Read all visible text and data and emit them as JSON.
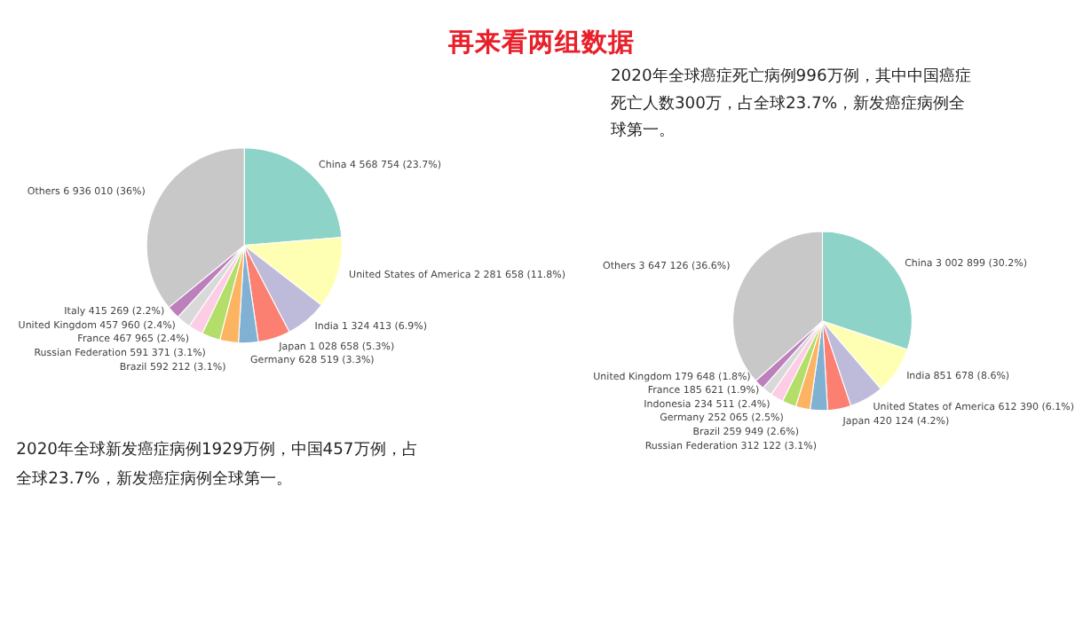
{
  "chart_data": [
    {
      "type": "pie",
      "title": "再来看两组数据",
      "categories": [
        "China",
        "United States of America",
        "India",
        "Japan",
        "Germany",
        "Brazil",
        "Russian Federation",
        "France",
        "United Kingdom",
        "Italy",
        "Others"
      ],
      "values": [
        4568754,
        2281658,
        1324413,
        1028658,
        628519,
        592212,
        591371,
        467965,
        457960,
        415269,
        6936010
      ],
      "value_labels": [
        "4 568 754 (23.7%)",
        "2 281 658 (11.8%)",
        "1 324 413 (6.9%)",
        "1 028 658 (5.3%)",
        "628 519 (3.3%)",
        "592 212 (3.1%)",
        "591 371 (3.1%)",
        "467 965 (2.4%)",
        "457 960 (2.4%)",
        "415 269 (2.2%)",
        "6 936 010 (36%)"
      ],
      "colors": [
        "#8dd3c7",
        "#ffffb3",
        "#bebada",
        "#fb8072",
        "#80b1d3",
        "#fdb462",
        "#b3de69",
        "#fccde5",
        "#d9d9d9",
        "#bc80bd",
        "#c8c8c8"
      ],
      "annotations": [
        "2020年全球新发癌症病例1929万例，中国457万例，占全球23.7%，新发癌症病例全球第一。"
      ]
    },
    {
      "type": "pie",
      "categories": [
        "China",
        "India",
        "United States of America",
        "Japan",
        "Russian Federation",
        "Brazil",
        "Germany",
        "Indonesia",
        "France",
        "United Kingdom",
        "Others"
      ],
      "values": [
        3002899,
        851678,
        612390,
        420124,
        312122,
        259949,
        252065,
        234511,
        185621,
        179648,
        3647126
      ],
      "value_labels": [
        "3 002 899 (30.2%)",
        "851 678 (8.6%)",
        "612 390 (6.1%)",
        "420 124 (4.2%)",
        "312 122 (3.1%)",
        "259 949 (2.6%)",
        "252 065 (2.5%)",
        "234 511 (2.4%)",
        "185 621 (1.9%)",
        "179 648 (1.8%)",
        "3 647 126 (36.6%)"
      ],
      "colors": [
        "#8dd3c7",
        "#ffffb3",
        "#bebada",
        "#fb8072",
        "#80b1d3",
        "#fdb462",
        "#b3de69",
        "#fccde5",
        "#d9d9d9",
        "#bc80bd",
        "#c8c8c8"
      ],
      "annotations": [
        "2020年全球癌症死亡病例996万例，其中中国癌症死亡人数300万，占全球23.7%，新发癌症病例全球第一。"
      ]
    }
  ]
}
